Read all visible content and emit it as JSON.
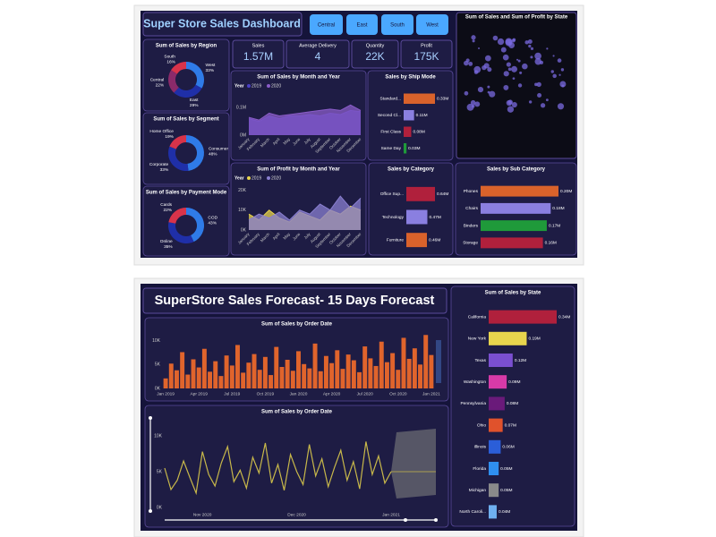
{
  "dashboard1": {
    "title": "Super Store Sales Dashboard",
    "buttons": [
      "Central",
      "East",
      "South",
      "West"
    ],
    "kpis": [
      {
        "label": "Sales",
        "value": "1.57M"
      },
      {
        "label": "Average Delivery",
        "value": "4"
      },
      {
        "label": "Quantity",
        "value": "22K"
      },
      {
        "label": "Profit",
        "value": "175K"
      }
    ],
    "map": {
      "title": "Sum of Sales and Sum of Profit by State"
    }
  },
  "dashboard2": {
    "title": "SuperStore Sales Forecast- 15 Days Forecast"
  },
  "chart_data": [
    {
      "type": "donut",
      "title": "Sum of Sales by Region",
      "categories": [
        "West",
        "East",
        "Central",
        "South"
      ],
      "values": [
        33,
        29,
        22,
        16
      ],
      "value_labels": [
        "33%",
        "29%",
        "22%",
        "16%"
      ],
      "colors": [
        "#2f7be8",
        "#1f2fa8",
        "#8a2a6a",
        "#d8334a"
      ]
    },
    {
      "type": "donut",
      "title": "Sum of Sales by Segment",
      "categories": [
        "Consumer",
        "Corporate",
        "Home Office"
      ],
      "values": [
        48,
        33,
        19
      ],
      "value_labels": [
        "48%",
        "33%",
        "19%"
      ],
      "colors": [
        "#2f7be8",
        "#1f2fa8",
        "#d8334a"
      ]
    },
    {
      "type": "donut",
      "title": "Sum of Sales by Payment Mode",
      "categories": [
        "COD",
        "Online",
        "Cards"
      ],
      "values": [
        43,
        35,
        22
      ],
      "value_labels": [
        "43%",
        "35%",
        "22%"
      ],
      "colors": [
        "#2f7be8",
        "#1f2fa8",
        "#d8334a"
      ]
    },
    {
      "type": "area",
      "title": "Sum of Sales by Month and Year",
      "legend_title": "Year",
      "categories": [
        "January",
        "February",
        "March",
        "April",
        "May",
        "June",
        "July",
        "August",
        "September",
        "October",
        "November",
        "December"
      ],
      "series": [
        {
          "name": "2019",
          "color": "#4b3fc4",
          "values": [
            60000,
            50000,
            70000,
            60000,
            70000,
            70000,
            75000,
            70000,
            80000,
            75000,
            90000,
            85000
          ]
        },
        {
          "name": "2020",
          "color": "#8a5cc8",
          "values": [
            65000,
            55000,
            80000,
            70000,
            75000,
            80000,
            85000,
            90000,
            95000,
            90000,
            110000,
            90000
          ]
        }
      ],
      "ylim": [
        0,
        150000
      ],
      "yticks": [
        {
          "value": 0,
          "label": "0M"
        },
        {
          "value": 100000,
          "label": "0.1M"
        }
      ]
    },
    {
      "type": "hbar",
      "title": "Sales by Ship Mode",
      "categories": [
        "Standard...",
        "Second Cl...",
        "First Class",
        "Same Day"
      ],
      "values": [
        0.33,
        0.11,
        0.08,
        0.03
      ],
      "value_labels": [
        "0.33M",
        "0.11M",
        "0.08M",
        "0.03M"
      ],
      "colors": [
        "#d9622b",
        "#8a7fe0",
        "#b0203c",
        "#1f9a3a"
      ]
    },
    {
      "type": "area",
      "title": "Sum of Profit by Month and Year",
      "legend_title": "Year",
      "categories": [
        "January",
        "February",
        "March",
        "April",
        "May",
        "June",
        "July",
        "August",
        "September",
        "October",
        "November",
        "December"
      ],
      "series": [
        {
          "name": "2019",
          "color": "#e8d44d",
          "values": [
            8000,
            5000,
            10000,
            6000,
            4000,
            9000,
            7000,
            5000,
            10000,
            8000,
            12000,
            10000
          ]
        },
        {
          "name": "2020",
          "color": "#8a7fd0",
          "values": [
            5000,
            8000,
            6000,
            9000,
            5000,
            10000,
            8000,
            13000,
            10000,
            17000,
            11000,
            16000
          ]
        }
      ],
      "ylim": [
        0,
        22000
      ],
      "yticks": [
        {
          "value": 0,
          "label": "0K"
        },
        {
          "value": 10000,
          "label": "10K"
        },
        {
          "value": 20000,
          "label": "20K"
        }
      ]
    },
    {
      "type": "hbar",
      "title": "Sales by Category",
      "categories": [
        "Office Sup...",
        "Technology",
        "Furniture"
      ],
      "values": [
        0.64,
        0.47,
        0.46
      ],
      "value_labels": [
        "0.64M",
        "0.47M",
        "0.46M"
      ],
      "colors": [
        "#b0203c",
        "#8a7fe0",
        "#d9622b"
      ]
    },
    {
      "type": "hbar",
      "title": "Sales by Sub Category",
      "categories": [
        "Phones",
        "Chairs",
        "Binders",
        "Storage"
      ],
      "values": [
        0.2,
        0.18,
        0.17,
        0.16
      ],
      "value_labels": [
        "0.20M",
        "0.18M",
        "0.17M",
        "0.16M"
      ],
      "colors": [
        "#d9622b",
        "#8a7fe0",
        "#1f9a3a",
        "#b0203c"
      ]
    },
    {
      "type": "bar",
      "title": "Sum of Sales by Order Date",
      "color": "#e0642c",
      "categories": [
        "Jan 2019",
        null,
        null,
        null,
        null,
        null,
        "Apr 2019",
        null,
        null,
        null,
        null,
        null,
        "Jul 2019",
        null,
        null,
        null,
        null,
        null,
        "Oct 2019",
        null,
        null,
        null,
        null,
        null,
        "Jan 2020",
        null,
        null,
        null,
        null,
        null,
        "Apr 2020",
        null,
        null,
        null,
        null,
        null,
        "Jul 2020",
        null,
        null,
        null,
        null,
        null,
        "Oct 2020",
        null,
        null,
        null,
        null,
        null,
        "Jan 2021"
      ],
      "values": [
        2100,
        5200,
        3800,
        7600,
        2900,
        6100,
        4400,
        8300,
        3500,
        5700,
        2600,
        6900,
        4800,
        9100,
        3300,
        5400,
        7200,
        3900,
        6600,
        2800,
        8700,
        4500,
        6000,
        3700,
        7800,
        5100,
        4200,
        9400,
        3600,
        6800,
        5300,
        8000,
        4100,
        7100,
        5900,
        3400,
        8800,
        6300,
        4700,
        9800,
        5500,
        7400,
        3900,
        10600,
        6200,
        8400,
        5000,
        11200,
        7000
      ],
      "ylim": [
        0,
        12000
      ],
      "yticks": [
        {
          "value": 0,
          "label": "0K"
        },
        {
          "value": 5000,
          "label": "5K"
        },
        {
          "value": 10000,
          "label": "10K"
        }
      ]
    },
    {
      "type": "line",
      "title": "Sum of Sales by Order Date",
      "color": "#c8b84a",
      "categories": [
        null,
        null,
        null,
        null,
        null,
        null,
        "Nov 2020",
        null,
        null,
        null,
        null,
        null,
        null,
        null,
        null,
        null,
        null,
        null,
        null,
        null,
        null,
        "Dec 2020",
        null,
        null,
        null,
        null,
        null,
        null,
        null,
        null,
        null,
        null,
        null,
        null,
        null,
        null,
        "Jan 2021"
      ],
      "values": [
        5500,
        2500,
        3800,
        6500,
        4200,
        2000,
        7800,
        4600,
        3000,
        6200,
        8500,
        3600,
        5200,
        2700,
        7000,
        4800,
        9000,
        3400,
        6000,
        2400,
        7400,
        5000,
        3200,
        8800,
        4400,
        6800,
        2900,
        5600,
        8000,
        3800,
        6400,
        2600,
        9200,
        4600,
        7200,
        3400,
        5000
      ],
      "ylim": [
        0,
        12000
      ],
      "yticks": [
        {
          "value": 0,
          "label": "0K"
        },
        {
          "value": 5000,
          "label": "5K"
        },
        {
          "value": 10000,
          "label": "10K"
        }
      ]
    },
    {
      "type": "hbar",
      "title": "Sum of Sales by State",
      "categories": [
        "California",
        "New York",
        "Texas",
        "Washington",
        "Pennsylvania",
        "Ohio",
        "Illinois",
        "Florida",
        "Michigan",
        "North Caroli..."
      ],
      "values": [
        0.34,
        0.19,
        0.12,
        0.09,
        0.08,
        0.07,
        0.06,
        0.05,
        0.05,
        0.04
      ],
      "value_labels": [
        "0.34M",
        "0.19M",
        "0.12M",
        "0.09M",
        "0.08M",
        "0.07M",
        "0.06M",
        "0.05M",
        "0.05M",
        "0.04M"
      ],
      "colors": [
        "#b0203c",
        "#e8d44d",
        "#7a4fd0",
        "#d83aa8",
        "#6a1a7a",
        "#e0522c",
        "#2b5ed8",
        "#2f8ff0",
        "#8a8a8a",
        "#6fb0f0"
      ]
    }
  ]
}
